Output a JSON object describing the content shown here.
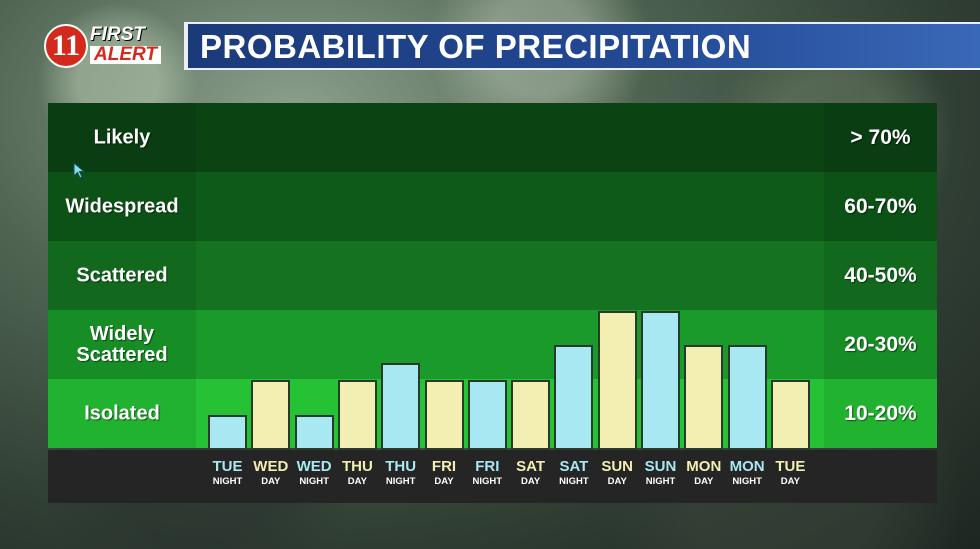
{
  "header": {
    "logo_number": "11",
    "logo_first": "FIRST",
    "logo_alert": "ALERT",
    "title": "PROBABILITY OF PRECIPITATION"
  },
  "colors": {
    "night": "#a8e8f2",
    "day": "#f3eeb2",
    "bands": [
      "#0b4313",
      "#0e5a18",
      "#147220",
      "#1a9a2a",
      "#24c234"
    ],
    "title_bg": "#1b3a7a"
  },
  "chart_data": {
    "type": "bar",
    "title": "PROBABILITY OF PRECIPITATION",
    "categories": [
      {
        "day": "TUE",
        "period": "NIGHT"
      },
      {
        "day": "WED",
        "period": "DAY"
      },
      {
        "day": "WED",
        "period": "NIGHT"
      },
      {
        "day": "THU",
        "period": "DAY"
      },
      {
        "day": "THU",
        "period": "NIGHT"
      },
      {
        "day": "FRI",
        "period": "DAY"
      },
      {
        "day": "FRI",
        "period": "NIGHT"
      },
      {
        "day": "SAT",
        "period": "DAY"
      },
      {
        "day": "SAT",
        "period": "NIGHT"
      },
      {
        "day": "SUN",
        "period": "DAY"
      },
      {
        "day": "SUN",
        "period": "NIGHT"
      },
      {
        "day": "MON",
        "period": "DAY"
      },
      {
        "day": "MON",
        "period": "NIGHT"
      },
      {
        "day": "TUE",
        "period": "DAY"
      }
    ],
    "values": [
      10,
      20,
      10,
      20,
      25,
      20,
      20,
      20,
      30,
      40,
      40,
      30,
      30,
      20
    ],
    "ylim": [
      0,
      100
    ],
    "bands": [
      {
        "label": "Likely",
        "range": "> 70%"
      },
      {
        "label": "Widespread",
        "range": "60-70%"
      },
      {
        "label": "Scattered",
        "range": "40-50%"
      },
      {
        "label": "Widely Scattered",
        "range": "20-30%"
      },
      {
        "label": "Isolated",
        "range": "10-20%"
      }
    ]
  }
}
